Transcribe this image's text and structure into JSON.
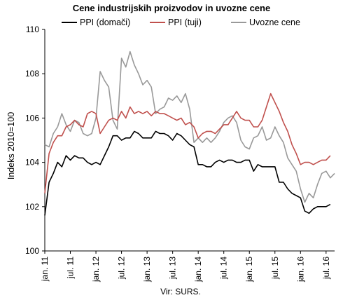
{
  "chart_data": {
    "type": "line",
    "title": "Cene industrijskih proizvodov in uvozne cene",
    "ylabel": "Indeks 2010=100",
    "xlabel": "",
    "ylim": [
      100,
      110
    ],
    "yticks": [
      100,
      102,
      104,
      106,
      108,
      110
    ],
    "x_start": "2011-01",
    "x_tick_labels": [
      {
        "label": "jan. 11",
        "month_index": 0
      },
      {
        "label": "jul. 11",
        "month_index": 6
      },
      {
        "label": "jan. 12",
        "month_index": 12
      },
      {
        "label": "jul. 12",
        "month_index": 18
      },
      {
        "label": "jan. 13",
        "month_index": 24
      },
      {
        "label": "jul. 13",
        "month_index": 30
      },
      {
        "label": "jan. 14",
        "month_index": 36
      },
      {
        "label": "jul. 14",
        "month_index": 42
      },
      {
        "label": "jan. 15",
        "month_index": 48
      },
      {
        "label": "jul. 15",
        "month_index": 54
      },
      {
        "label": "jan. 16",
        "month_index": 60
      },
      {
        "label": "jul. 16",
        "month_index": 66
      }
    ],
    "grid": false,
    "legend_position": "top",
    "source": "Vir: SURS.",
    "series": [
      {
        "name": "PPI (domači)",
        "color": "#000000",
        "values": [
          101.6,
          103.1,
          103.5,
          104.0,
          103.8,
          104.3,
          104.1,
          104.3,
          104.2,
          104.2,
          104.0,
          103.9,
          104.0,
          103.9,
          104.3,
          104.7,
          105.2,
          105.2,
          105.0,
          105.1,
          105.1,
          105.4,
          105.3,
          105.1,
          105.1,
          105.1,
          105.4,
          105.3,
          105.3,
          105.2,
          105.0,
          105.3,
          105.2,
          105.0,
          104.8,
          104.7,
          103.9,
          103.9,
          103.8,
          103.8,
          104.0,
          104.1,
          104.0,
          104.1,
          104.1,
          104.0,
          104.0,
          104.1,
          104.1,
          103.6,
          103.9,
          103.8,
          103.8,
          103.8,
          103.8,
          103.1,
          103.1,
          102.8,
          102.6,
          102.5,
          102.4,
          101.8,
          101.7,
          101.9,
          102.0,
          102.0,
          102.0,
          102.1
        ]
      },
      {
        "name": "PPI (tuji)",
        "color": "#c0504d",
        "values": [
          102.6,
          104.4,
          104.9,
          105.2,
          105.2,
          105.6,
          105.7,
          105.9,
          105.7,
          105.6,
          106.2,
          106.3,
          106.2,
          105.3,
          105.6,
          105.9,
          106.0,
          105.9,
          106.3,
          106.0,
          106.5,
          106.2,
          106.3,
          106.2,
          106.3,
          106.1,
          106.3,
          106.2,
          106.2,
          106.1,
          106.0,
          105.9,
          106.0,
          105.7,
          105.8,
          105.6,
          105.1,
          105.3,
          105.4,
          105.4,
          105.3,
          105.5,
          105.7,
          105.7,
          106.0,
          106.3,
          106.0,
          105.9,
          105.9,
          105.6,
          105.6,
          105.9,
          106.5,
          107.1,
          106.7,
          106.3,
          105.8,
          105.4,
          104.8,
          104.4,
          103.9,
          104.0,
          104.0,
          103.9,
          104.0,
          104.1,
          104.1,
          104.3
        ]
      },
      {
        "name": "Uvozne cene",
        "color": "#999999",
        "values": [
          104.8,
          104.7,
          105.3,
          105.6,
          106.2,
          105.7,
          105.4,
          105.9,
          105.8,
          105.3,
          105.2,
          105.3,
          106.0,
          108.1,
          107.7,
          107.4,
          105.9,
          105.5,
          108.7,
          108.3,
          109.0,
          108.4,
          108.0,
          107.5,
          107.7,
          107.4,
          106.2,
          106.4,
          106.5,
          106.9,
          106.8,
          107.0,
          106.7,
          107.1,
          106.4,
          104.9,
          105.1,
          104.9,
          105.1,
          104.9,
          105.1,
          105.4,
          105.8,
          106.0,
          106.1,
          105.8,
          105.0,
          104.7,
          104.6,
          105.1,
          105.2,
          105.6,
          105.0,
          105.1,
          105.6,
          105.2,
          104.9,
          104.2,
          103.9,
          103.6,
          102.8,
          102.2,
          102.6,
          102.4,
          103.0,
          103.5,
          103.6,
          103.3,
          103.5
        ]
      }
    ]
  }
}
